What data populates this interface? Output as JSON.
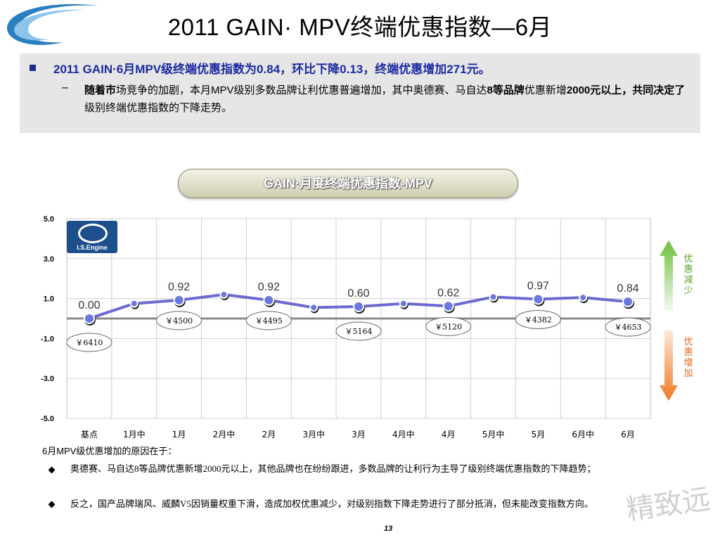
{
  "title": "2011 GAIN· MPV终端优惠指数—6月",
  "summary": {
    "headline": "2011 GAIN·6月MPV级终端优惠指数为0.84，环比下降0.13，终端优惠增加271元。",
    "dash": "–",
    "detail_part1": "随着市",
    "detail_part2": "场竞争的加剧，本月MPV级别多数品牌让利优惠普遍增加，其中奥德赛、马自达",
    "detail_part3": "8等品牌",
    "detail_part4": "优惠新增",
    "detail_part5": "2000元以上，共同决定了",
    "detail_part6": "级别终端优惠指数的下降走势。"
  },
  "chart_title": "GAIN·月度终端优惠指数-MPV",
  "logo_text": "I.S.Engine",
  "side_labels": {
    "up": "优惠减少",
    "down": "优惠增加"
  },
  "colors": {
    "line": "#6a6ad0",
    "baseline": "#8a8a8a",
    "up_arrow": "#7cc24a",
    "down_arrow": "#f08030"
  },
  "chart_data": {
    "type": "line",
    "categories": [
      "基点",
      "1月中",
      "1月",
      "2月中",
      "2月",
      "3月中",
      "3月",
      "4月中",
      "4月",
      "5月中",
      "5月",
      "6月中",
      "6月"
    ],
    "values": [
      0.0,
      0.75,
      0.92,
      1.2,
      0.92,
      0.55,
      0.6,
      0.75,
      0.62,
      1.08,
      0.97,
      1.05,
      0.84
    ],
    "ylim": [
      -5.0,
      5.0
    ],
    "yticks": [
      "5.0",
      "3.0",
      "1.0",
      "-1.0",
      "-3.0",
      "-5.0"
    ],
    "ytick_values": [
      5.0,
      3.0,
      1.0,
      -1.0,
      -3.0,
      -5.0
    ],
    "data_labels": [
      {
        "index": 0,
        "text": "0.00"
      },
      {
        "index": 2,
        "text": "0.92"
      },
      {
        "index": 4,
        "text": "0.92"
      },
      {
        "index": 6,
        "text": "0.60"
      },
      {
        "index": 8,
        "text": "0.62"
      },
      {
        "index": 10,
        "text": "0.97"
      },
      {
        "index": 12,
        "text": "0.84"
      }
    ],
    "price_callouts": [
      {
        "index": 0,
        "text": "￥6410"
      },
      {
        "index": 2,
        "text": "￥4500"
      },
      {
        "index": 4,
        "text": "￥4495"
      },
      {
        "index": 6,
        "text": "￥5164"
      },
      {
        "index": 8,
        "text": "￥5120"
      },
      {
        "index": 10,
        "text": "￥4382"
      },
      {
        "index": 12,
        "text": "￥4653"
      }
    ],
    "grid": true
  },
  "reasons": {
    "title": "6月MPV级优惠增加的原因在于：",
    "items": [
      "奥德赛、马自达8等品牌优惠新增2000元以上，其他品牌也在纷纷跟进，多数品牌的让利行为主导了级别终端优惠指数的下降趋势；",
      "反之，国产品牌瑞风、威麟V5因销量权重下滑，造成加权优惠减少，对级别指数下降走势进行了部分抵消，但未能改变指数方向。"
    ]
  },
  "page_number": "13",
  "watermark": "精致远"
}
